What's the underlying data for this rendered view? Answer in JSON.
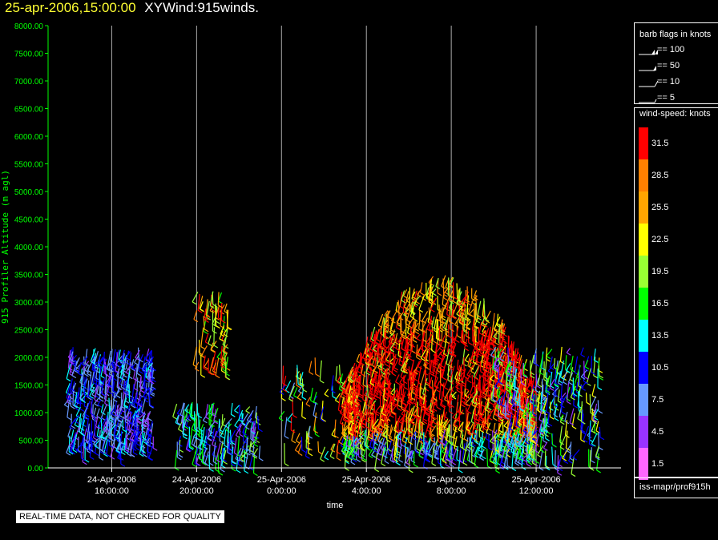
{
  "header": {
    "timestamp": "25-apr-2006,15:00:00",
    "product": "XYWind:915winds."
  },
  "legend": {
    "barb_title": "barb flags in knots",
    "barb_entries": [
      "== 100",
      "== 50",
      "== 10",
      "== 5"
    ],
    "speed_title": "wind-speed: knots",
    "speed_levels": [
      {
        "label": "31.5",
        "color": "#ff0000"
      },
      {
        "label": "28.5",
        "color": "#ff8000"
      },
      {
        "label": "25.5",
        "color": "#ffa500"
      },
      {
        "label": "22.5",
        "color": "#ffff00"
      },
      {
        "label": "19.5",
        "color": "#99ff33"
      },
      {
        "label": "16.5",
        "color": "#00ff00"
      },
      {
        "label": "13.5",
        "color": "#00ffff"
      },
      {
        "label": "10.5",
        "color": "#0000ff"
      },
      {
        "label": "7.5",
        "color": "#6699ff"
      },
      {
        "label": "4.5",
        "color": "#9933ff"
      },
      {
        "label": "1.5",
        "color": "#ff66ff"
      }
    ],
    "source": "iss-mapr/prof915h"
  },
  "disclaimer": "REAL-TIME DATA, NOT CHECKED FOR QUALITY",
  "chart_data": {
    "type": "scatter",
    "title": "25-apr-2006,15:00:00  XYWind:915winds.",
    "xlabel": "time",
    "ylabel": "915 Profiler Altitude (m agl)",
    "ylim": [
      0,
      8000
    ],
    "yticks": [
      "0.00",
      "500.00",
      "1000.00",
      "1500.00",
      "2000.00",
      "2500.00",
      "3000.00",
      "3500.00",
      "4000.00",
      "4500.00",
      "5000.00",
      "5500.00",
      "6000.00",
      "6500.00",
      "7000.00",
      "7500.00",
      "8000.00"
    ],
    "xlim": [
      "2006-04-24 13:00",
      "2006-04-25 16:00"
    ],
    "xticks": [
      {
        "line1": "24-Apr-2006",
        "line2": "16:00:00"
      },
      {
        "line1": "24-Apr-2006",
        "line2": "20:00:00"
      },
      {
        "line1": "25-Apr-2006",
        "line2": "0:00:00"
      },
      {
        "line1": "25-Apr-2006",
        "line2": "4:00:00"
      },
      {
        "line1": "25-Apr-2006",
        "line2": "8:00:00"
      },
      {
        "line1": "25-Apr-2006",
        "line2": "12:00:00"
      }
    ],
    "grid": true,
    "series_summary": [
      {
        "period": "24-Apr 14:00-18:00",
        "alt_range_m": [
          400,
          2200
        ],
        "speed_knots": "4.5-13.5"
      },
      {
        "period": "24-Apr 20:00-21:30",
        "alt_range_m": [
          1900,
          3200
        ],
        "speed_knots": "16.5-31.5"
      },
      {
        "period": "24-Apr 19:00-23:00",
        "alt_range_m": [
          200,
          1200
        ],
        "speed_knots": "4.5-19.5"
      },
      {
        "period": "25-Apr 0:00-3:00",
        "alt_range_m": [
          300,
          2000
        ],
        "speed_knots": "7.5-31.5"
      },
      {
        "period": "25-Apr 3:00-12:00",
        "alt_range_m": [
          300,
          3500
        ],
        "speed_knots": "19.5-31.5"
      },
      {
        "period": "25-Apr 10:00-15:00",
        "alt_range_m": [
          200,
          2200
        ],
        "speed_knots": "4.5-22.5"
      }
    ]
  }
}
